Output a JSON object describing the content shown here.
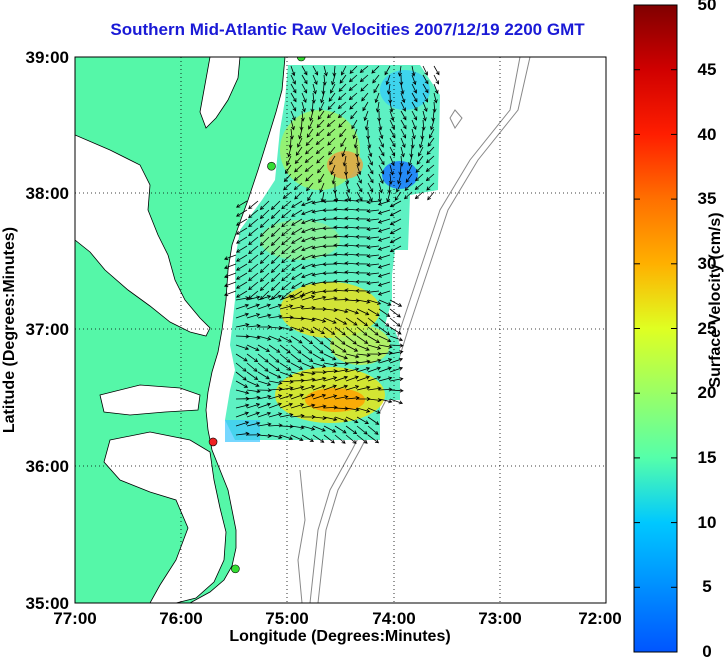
{
  "title": "Southern Mid-Atlantic Raw Velocities 2007/12/19 2200 GMT",
  "x_axis": {
    "label": "Longitude (Degrees:Minutes)",
    "ticks": [
      "77:00",
      "76:00",
      "75:00",
      "74:00",
      "73:00",
      "72:00"
    ]
  },
  "y_axis": {
    "label": "Latitude (Degrees:Minutes)",
    "ticks": [
      "39:00",
      "38:00",
      "37:00",
      "36:00",
      "35:00"
    ]
  },
  "colorbar": {
    "label": "Surface Velocity (cm/s)",
    "ticks": [
      "50",
      "45",
      "40",
      "35",
      "30",
      "25",
      "20",
      "15",
      "10",
      "5",
      "0"
    ],
    "min": 0,
    "max": 50
  },
  "colors": {
    "land": "#55f7a8",
    "title": "#1a1ad6",
    "site_active": "#33dd33",
    "site_inactive": "#ee2222"
  },
  "stations": [
    {
      "lon": -74.87,
      "lat": 39.0,
      "status": "active"
    },
    {
      "lon": -75.15,
      "lat": 38.2,
      "status": "active"
    },
    {
      "lon": -75.7,
      "lat": 36.18,
      "status": "inactive"
    },
    {
      "lon": -75.49,
      "lat": 35.25,
      "status": "active"
    }
  ],
  "grid": true
}
